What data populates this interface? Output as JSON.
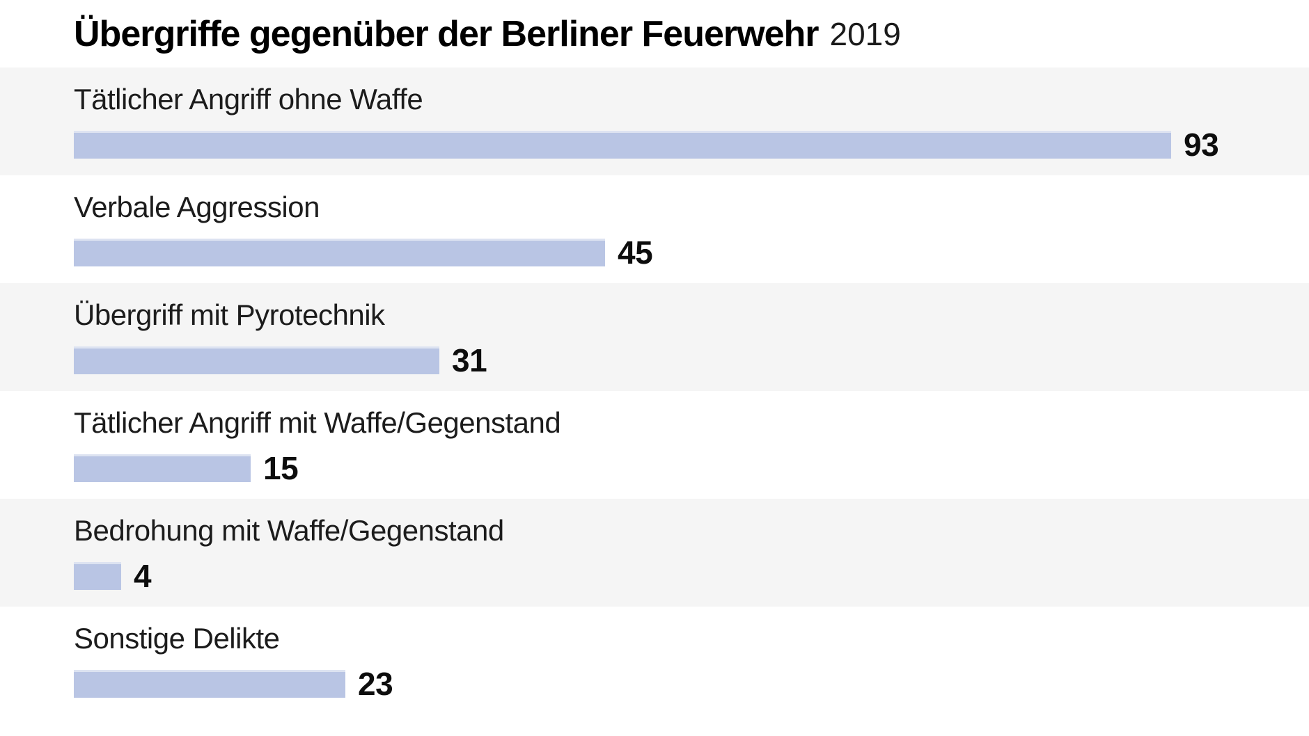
{
  "header": {
    "title": "Übergriffe gegenüber der Berliner Feuerwehr",
    "year": "2019"
  },
  "chart_data": {
    "type": "bar",
    "orientation": "horizontal",
    "title": "Übergriffe gegenüber der Berliner Feuerwehr",
    "subtitle_year": "2019",
    "categories": [
      "Tätlicher Angriff ohne Waffe",
      "Verbale Aggression",
      "Übergriff mit Pyrotechnik",
      "Tätlicher Angriff mit Waffe/Gegenstand",
      "Bedrohung mit Waffe/Gegenstand",
      "Sonstige Delikte"
    ],
    "values": [
      93,
      45,
      31,
      15,
      4,
      23
    ],
    "xlim": [
      0,
      93
    ],
    "value_labels_shown": true,
    "grid": false,
    "legend": false,
    "bar_color": "#b9c5e4",
    "row_alt_color": "#f5f5f5",
    "label_color": "#1c1c1c",
    "value_color": "#0d0d0d"
  }
}
